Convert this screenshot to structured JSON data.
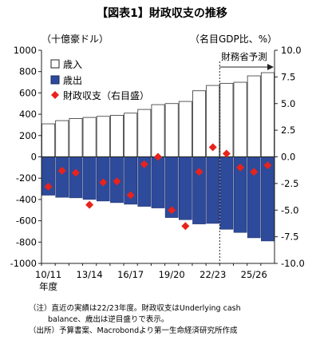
{
  "title": "【図表1】財政収支の推移",
  "left_unit": "（十億豪ドル）",
  "right_unit": "（名目GDP比、%）",
  "chart_data": {
    "type": "bar+scatter",
    "categories": [
      "10/11",
      "11/12",
      "12/13",
      "13/14",
      "14/15",
      "15/16",
      "16/17",
      "17/18",
      "18/19",
      "19/20",
      "20/21",
      "21/22",
      "22/23",
      "23/24",
      "24/25",
      "25/26",
      "26/27"
    ],
    "x_tick_labels": [
      "10/11",
      "13/14",
      "16/17",
      "19/20",
      "22/23",
      "25/26"
    ],
    "x_unit_label": "年度",
    "y_left": {
      "min": -1000,
      "max": 1000,
      "ticks": [
        -1000,
        -800,
        -600,
        -400,
        -200,
        0,
        200,
        400,
        600,
        800,
        1000
      ]
    },
    "y_right": {
      "min": -10.0,
      "max": 10.0,
      "ticks": [
        "-10.0",
        "-7.5",
        "-5.0",
        "-2.5",
        "0.0",
        "2.5",
        "5.0",
        "7.5",
        "10.0"
      ]
    },
    "series": [
      {
        "name": "歳入",
        "kind": "bar",
        "axis": "left",
        "color": "#ffffff",
        "edge": "#333333",
        "values": [
          310,
          340,
          360,
          370,
          380,
          390,
          410,
          445,
          490,
          500,
          520,
          620,
          670,
          690,
          700,
          760,
          790
        ]
      },
      {
        "name": "歳出",
        "kind": "bar",
        "axis": "left",
        "color": "#2e4a9a",
        "edge": "#1a2a66",
        "values": [
          -360,
          -380,
          -385,
          -400,
          -415,
          -430,
          -445,
          -465,
          -480,
          -570,
          -590,
          -630,
          -625,
          -680,
          -710,
          -760,
          -790
        ]
      },
      {
        "name": "財政収支（右目盛）",
        "kind": "marker",
        "axis": "right",
        "color": "#e8231c",
        "values": [
          -2.8,
          -1.3,
          -1.5,
          -4.5,
          -2.4,
          -2.3,
          -3.6,
          -0.7,
          0.0,
          -5.0,
          -6.5,
          -1.4,
          0.9,
          0.3,
          -1.0,
          -1.4,
          -0.8
        ]
      }
    ],
    "forecast": {
      "label": "財務省予測",
      "start_index": 13
    },
    "legend_position": "top-left",
    "grid": false
  },
  "notes": [
    "（注）直近の実績は22/23年度。財政収支はUnderlying cash",
    "balance、歳出は逆目盛りで表示。",
    "（出所）予算書案、Macrobondより第一生命経済研究所作成"
  ]
}
